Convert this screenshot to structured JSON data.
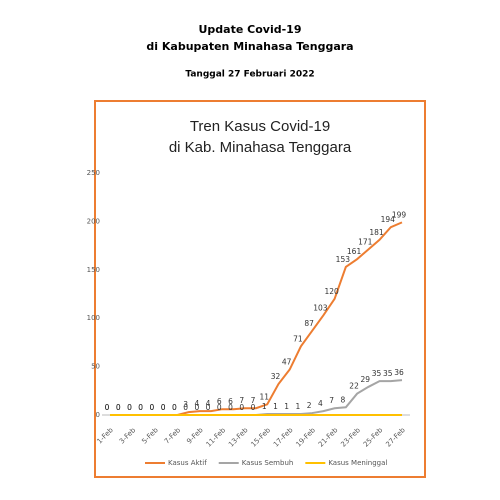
{
  "header": {
    "title": "Update Covid-19",
    "subtitle": "di Kabupaten Minahasa Tenggara",
    "date": "Tanggal 27 Februari 2022"
  },
  "chart_data": {
    "type": "line",
    "title": [
      "Tren Kasus Covid-19",
      "di Kab. Minahasa Tenggara"
    ],
    "categories": [
      "1-Feb",
      null,
      "3-Feb",
      null,
      "5-Feb",
      null,
      "7-Feb",
      null,
      "9-Feb",
      null,
      "11-Feb",
      null,
      "13-Feb",
      null,
      "15-Feb",
      null,
      "17-Feb",
      null,
      "19-Feb",
      null,
      "21-Feb",
      null,
      "23-Feb",
      null,
      "25-Feb",
      null,
      "27-Feb"
    ],
    "series": [
      {
        "name": "Kasus Aktif",
        "color": "#ed7d31",
        "values": [
          0,
          0,
          0,
          0,
          0,
          0,
          0,
          3,
          4,
          4,
          6,
          6,
          7,
          7,
          11,
          32,
          47,
          71,
          87,
          103,
          120,
          153,
          161,
          171,
          181,
          194,
          199
        ]
      },
      {
        "name": "Kasus Sembuh",
        "color": "#a5a5a5",
        "values": [
          0,
          0,
          0,
          0,
          0,
          0,
          0,
          0,
          0,
          0,
          0,
          0,
          0,
          0,
          1,
          1,
          1,
          1,
          2,
          4,
          7,
          8,
          22,
          29,
          35,
          35,
          36
        ]
      },
      {
        "name": "Kasus Meninggal",
        "color": "#ffc000",
        "values": [
          0,
          0,
          0,
          0,
          0,
          0,
          0,
          0,
          0,
          0,
          0,
          0,
          0,
          0,
          0,
          0,
          0,
          0,
          0,
          0,
          0,
          0,
          0,
          0,
          0,
          0,
          0
        ]
      }
    ],
    "labeled_series": [
      0,
      1
    ],
    "ylim": [
      0,
      250
    ],
    "yticks": [
      0,
      50,
      100,
      150,
      200,
      250
    ],
    "grid": false,
    "legend": "bottom",
    "frame_color": "#ed7d31"
  }
}
